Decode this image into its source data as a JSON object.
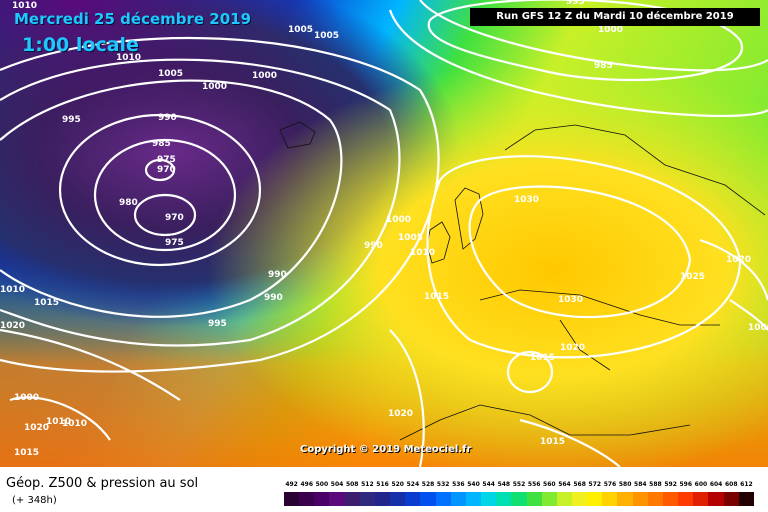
{
  "header": {
    "date": "Mercredi 25 décembre 2019",
    "time": "1:00 locale",
    "run_info": "Run GFS 12 Z du Mardi 10 décembre 2019"
  },
  "copyright": "Copyright © 2019 Meteociel.fr",
  "legend": {
    "title": "Géop. Z500 & pression au sol",
    "subtitle": "(+ 348h)",
    "scale_labels": [
      "492",
      "496",
      "500",
      "504",
      "508",
      "512",
      "516",
      "520",
      "524",
      "528",
      "532",
      "536",
      "540",
      "544",
      "548",
      "552",
      "556",
      "560",
      "564",
      "568",
      "572",
      "576",
      "580",
      "584",
      "588",
      "592",
      "596",
      "600",
      "604",
      "608",
      "612"
    ],
    "scale_colors": [
      "#2b0033",
      "#3a004d",
      "#4a0066",
      "#5a0a7a",
      "#3b1e6e",
      "#302a7e",
      "#20268c",
      "#1530a8",
      "#0a3cd0",
      "#0050f0",
      "#0070ff",
      "#0095ff",
      "#00b6ff",
      "#00d6e6",
      "#00e0b0",
      "#10e070",
      "#40e040",
      "#80ea30",
      "#c8f028",
      "#f0f020",
      "#fff000",
      "#ffd200",
      "#ffb000",
      "#ff9400",
      "#ff7800",
      "#ff5a00",
      "#ff3a00",
      "#e01e00",
      "#b40000",
      "#7a0000",
      "#200000"
    ]
  },
  "isobar_labels": [
    "1010",
    "1005",
    "1005",
    "1010",
    "1005",
    "1000",
    "1000",
    "995",
    "990",
    "985",
    "975",
    "970",
    "980",
    "970",
    "975",
    "990",
    "990",
    "995",
    "1000",
    "1005",
    "1010",
    "1015",
    "1020",
    "1000",
    "1010",
    "1010",
    "1030",
    "1030",
    "1025",
    "1020",
    "1020",
    "1015",
    "1015",
    "1020",
    "1020",
    "1015",
    "1010",
    "990",
    "1000",
    "1015",
    "985",
    "995",
    "1000"
  ]
}
